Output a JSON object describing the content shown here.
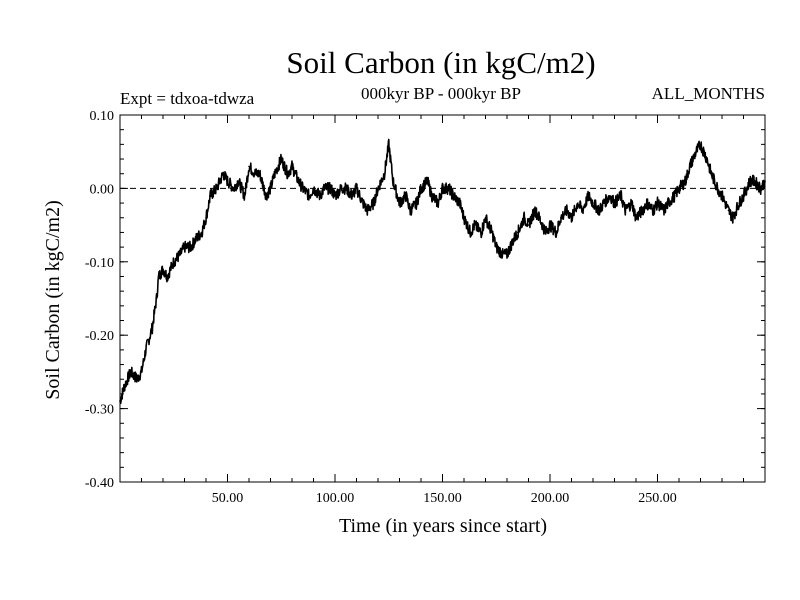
{
  "chart_data": {
    "type": "line",
    "title": "Soil Carbon (in kgC/m2)",
    "experiment": "Expt = tdxoa-tdwza",
    "subtitle": "000kyr BP - 000kyr BP",
    "period": "ALL_MONTHS",
    "xlabel": "Time (in years since start)",
    "ylabel": "Soil Carbon (in kgC/m2)",
    "xlim": [
      0,
      300
    ],
    "ylim": [
      -0.4,
      0.1
    ],
    "xticks": [
      50,
      100,
      150,
      200,
      250
    ],
    "xtick_labels": [
      "50.00",
      "100.00",
      "150.00",
      "200.00",
      "250.00"
    ],
    "yticks": [
      -0.4,
      -0.3,
      -0.2,
      -0.1,
      0.0,
      0.1
    ],
    "ytick_labels": [
      "-0.40",
      "-0.30",
      "-0.20",
      "-0.10",
      "0.00",
      "0.10"
    ],
    "reference_line": 0.0,
    "line_color": "#000000",
    "series": [
      {
        "x": [
          0,
          2,
          5,
          8,
          10,
          12,
          15,
          17,
          18,
          20,
          22,
          25,
          28,
          30,
          33,
          35,
          38,
          40,
          42,
          45,
          48,
          50,
          53,
          55,
          58,
          60,
          63,
          65,
          68,
          70,
          72,
          75,
          78,
          80,
          83,
          85,
          88,
          90,
          93,
          95,
          98,
          100,
          103,
          105,
          108,
          110,
          113,
          115,
          118,
          120,
          123,
          125,
          127,
          130,
          133,
          135,
          138,
          140,
          143,
          145,
          148,
          150,
          153,
          155,
          158,
          160,
          163,
          165,
          168,
          170,
          173,
          175,
          178,
          180,
          183,
          185,
          188,
          190,
          193,
          195,
          198,
          200,
          203,
          205,
          208,
          210,
          213,
          215,
          218,
          220,
          223,
          225,
          228,
          230,
          233,
          235,
          238,
          240,
          243,
          245,
          248,
          250,
          253,
          255,
          258,
          260,
          263,
          265,
          268,
          270,
          273,
          275,
          278,
          280,
          283,
          285,
          288,
          290,
          293,
          295,
          298,
          300
        ],
        "y": [
          -0.29,
          -0.27,
          -0.25,
          -0.26,
          -0.25,
          -0.22,
          -0.19,
          -0.15,
          -0.12,
          -0.11,
          -0.12,
          -0.1,
          -0.09,
          -0.08,
          -0.08,
          -0.07,
          -0.06,
          -0.04,
          -0.01,
          0.0,
          0.02,
          0.01,
          0.0,
          0.01,
          -0.01,
          0.03,
          0.02,
          0.02,
          -0.01,
          0.0,
          0.02,
          0.04,
          0.02,
          0.03,
          0.01,
          0.0,
          -0.01,
          0.0,
          -0.01,
          0.0,
          0.0,
          -0.01,
          0.0,
          0.0,
          -0.01,
          0.0,
          -0.02,
          -0.03,
          -0.02,
          0.0,
          0.02,
          0.06,
          0.01,
          -0.02,
          -0.01,
          -0.03,
          -0.02,
          0.0,
          0.01,
          -0.01,
          -0.02,
          0.0,
          0.0,
          -0.01,
          -0.02,
          -0.04,
          -0.06,
          -0.05,
          -0.06,
          -0.04,
          -0.06,
          -0.08,
          -0.09,
          -0.09,
          -0.07,
          -0.06,
          -0.04,
          -0.05,
          -0.03,
          -0.04,
          -0.06,
          -0.05,
          -0.06,
          -0.04,
          -0.03,
          -0.04,
          -0.02,
          -0.03,
          -0.01,
          -0.02,
          -0.03,
          -0.02,
          -0.01,
          -0.02,
          -0.01,
          -0.03,
          -0.02,
          -0.04,
          -0.03,
          -0.02,
          -0.03,
          -0.02,
          -0.03,
          -0.02,
          -0.01,
          0.0,
          0.01,
          0.03,
          0.05,
          0.06,
          0.04,
          0.02,
          0.0,
          -0.01,
          -0.03,
          -0.04,
          -0.02,
          -0.01,
          0.01,
          0.01,
          0.0,
          0.01
        ]
      }
    ]
  }
}
